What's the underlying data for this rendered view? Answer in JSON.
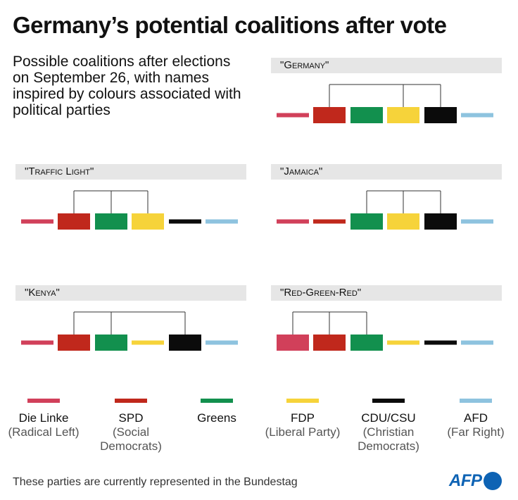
{
  "title": "Germany’s potential coalitions after vote",
  "subtitle": "Possible coalitions after elections on September 26, with names inspired by colours associated with political parties",
  "parties": [
    {
      "id": "linke",
      "name": "Die Linke",
      "desc": "(Radical Left)",
      "color": "#d1405a"
    },
    {
      "id": "spd",
      "name": "SPD",
      "desc": "(Social Democrats)",
      "color": "#c0281c"
    },
    {
      "id": "greens",
      "name": "Greens",
      "desc": "",
      "color": "#12904e"
    },
    {
      "id": "fdp",
      "name": "FDP",
      "desc": "(Liberal Party)",
      "color": "#f6d33a"
    },
    {
      "id": "cdu",
      "name": "CDU/CSU",
      "desc": "(Christian Democrats)",
      "color": "#0b0b0b"
    },
    {
      "id": "afd",
      "name": "AFD",
      "desc": "(Far Right)",
      "color": "#8ec3df"
    }
  ],
  "coalitions": [
    {
      "name": "\"Germany\"",
      "members": [
        "spd",
        "greens",
        "fdp",
        "cdu"
      ],
      "connected": [
        "spd",
        "fdp",
        "cdu"
      ]
    },
    {
      "name": "\"Traffic Light\"",
      "members": [
        "spd",
        "greens",
        "fdp"
      ],
      "connected": [
        "spd",
        "greens",
        "fdp"
      ]
    },
    {
      "name": "\"Jamaica\"",
      "members": [
        "greens",
        "fdp",
        "cdu"
      ],
      "connected": [
        "greens",
        "fdp",
        "cdu"
      ]
    },
    {
      "name": "\"Kenya\"",
      "members": [
        "spd",
        "greens",
        "cdu"
      ],
      "connected": [
        "spd",
        "greens",
        "cdu"
      ]
    },
    {
      "name": "\"Red-Green-Red\"",
      "members": [
        "linke",
        "spd",
        "greens"
      ],
      "connected": [
        "linke",
        "spd",
        "greens"
      ]
    }
  ],
  "footnote": "These parties are currently represented in the Bundestag",
  "logo": "AFP"
}
